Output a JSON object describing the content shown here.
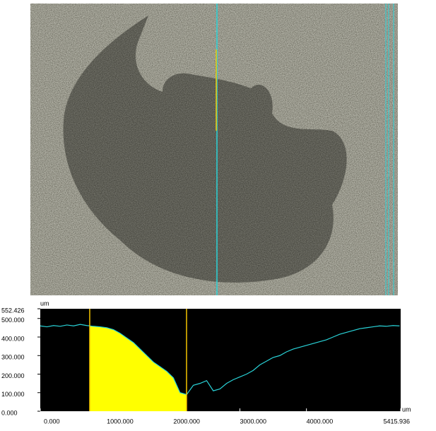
{
  "chart_data": {
    "type": "line",
    "x_label": "um",
    "y_label": "um",
    "x": [
      0,
      100,
      200,
      300,
      400,
      500,
      600,
      700,
      800,
      900,
      1000,
      1100,
      1200,
      1300,
      1400,
      1500,
      1600,
      1700,
      1800,
      1900,
      2000,
      2100,
      2200,
      2300,
      2400,
      2500,
      2600,
      2700,
      2800,
      2900,
      3000,
      3100,
      3200,
      3300,
      3400,
      3500,
      3600,
      3700,
      3800,
      3900,
      4000,
      4100,
      4200,
      4300,
      4400,
      4500,
      4600,
      4700,
      4800,
      4900,
      5000,
      5100,
      5200,
      5300,
      5400
    ],
    "series": [
      {
        "color": "#29d3d8",
        "fill_color": "#ffff00",
        "values": [
          460,
          455,
          462,
          458,
          465,
          460,
          468,
          462,
          458,
          455,
          450,
          440,
          420,
          395,
          370,
          335,
          300,
          265,
          240,
          215,
          180,
          100,
          90,
          140,
          150,
          165,
          110,
          120,
          150,
          170,
          185,
          200,
          220,
          250,
          270,
          290,
          300,
          320,
          335,
          345,
          355,
          365,
          375,
          385,
          400,
          415,
          425,
          435,
          445,
          450,
          455,
          460,
          458,
          462,
          460
        ]
      }
    ],
    "cursors": [
      743,
      2198
    ],
    "cursor_color": "#f5c400",
    "xlim": [
      0,
      5415.936
    ],
    "xticks": [
      {
        "value": 0,
        "label": "0.000"
      },
      {
        "value": 1000,
        "label": "1000.000"
      },
      {
        "value": 2000,
        "label": "2000.000"
      },
      {
        "value": 3000,
        "label": "3000.000"
      },
      {
        "value": 4000,
        "label": "4000.000"
      },
      5415.936
    ],
    "ylim": [
      0,
      552.426
    ],
    "yticks": [
      {
        "value": 0,
        "label": "0.000"
      },
      {
        "value": 100,
        "label": "100.000"
      },
      {
        "value": 200,
        "label": "200.000"
      },
      {
        "value": 300,
        "label": "300.000"
      },
      {
        "value": 400,
        "label": "400.000"
      },
      {
        "value": 500,
        "label": "500.000"
      },
      552.426
    ]
  }
}
